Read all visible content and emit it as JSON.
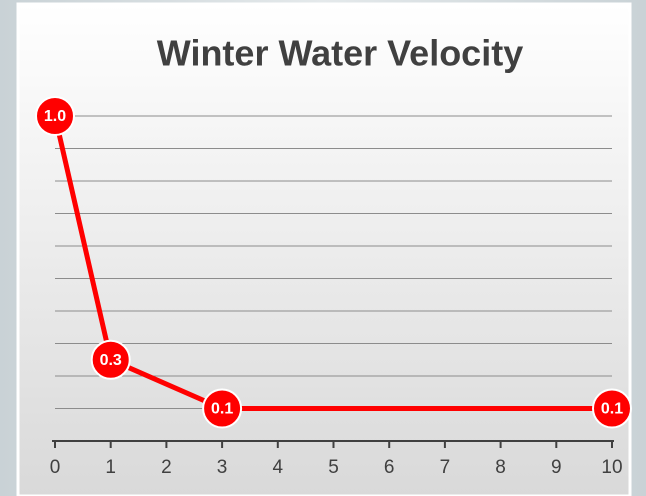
{
  "chart_data": {
    "type": "line",
    "title": "Winter Water Velocity",
    "x": [
      0,
      1,
      3,
      10
    ],
    "values": [
      1,
      0.25,
      0.1,
      0.1
    ],
    "value_labels": [
      "1.0",
      "0.3",
      "0.1",
      "0.1"
    ],
    "color": "#ff0000",
    "xlim": [
      0,
      10
    ],
    "xticks": [
      0,
      1,
      2,
      3,
      4,
      5,
      6,
      7,
      8,
      9,
      10
    ],
    "ylim": [
      0,
      1
    ],
    "yticks": [
      0.1,
      0.2,
      0.3,
      0.4,
      0.5,
      0.6,
      0.7,
      0.8,
      0.9,
      1
    ],
    "grid": true
  }
}
